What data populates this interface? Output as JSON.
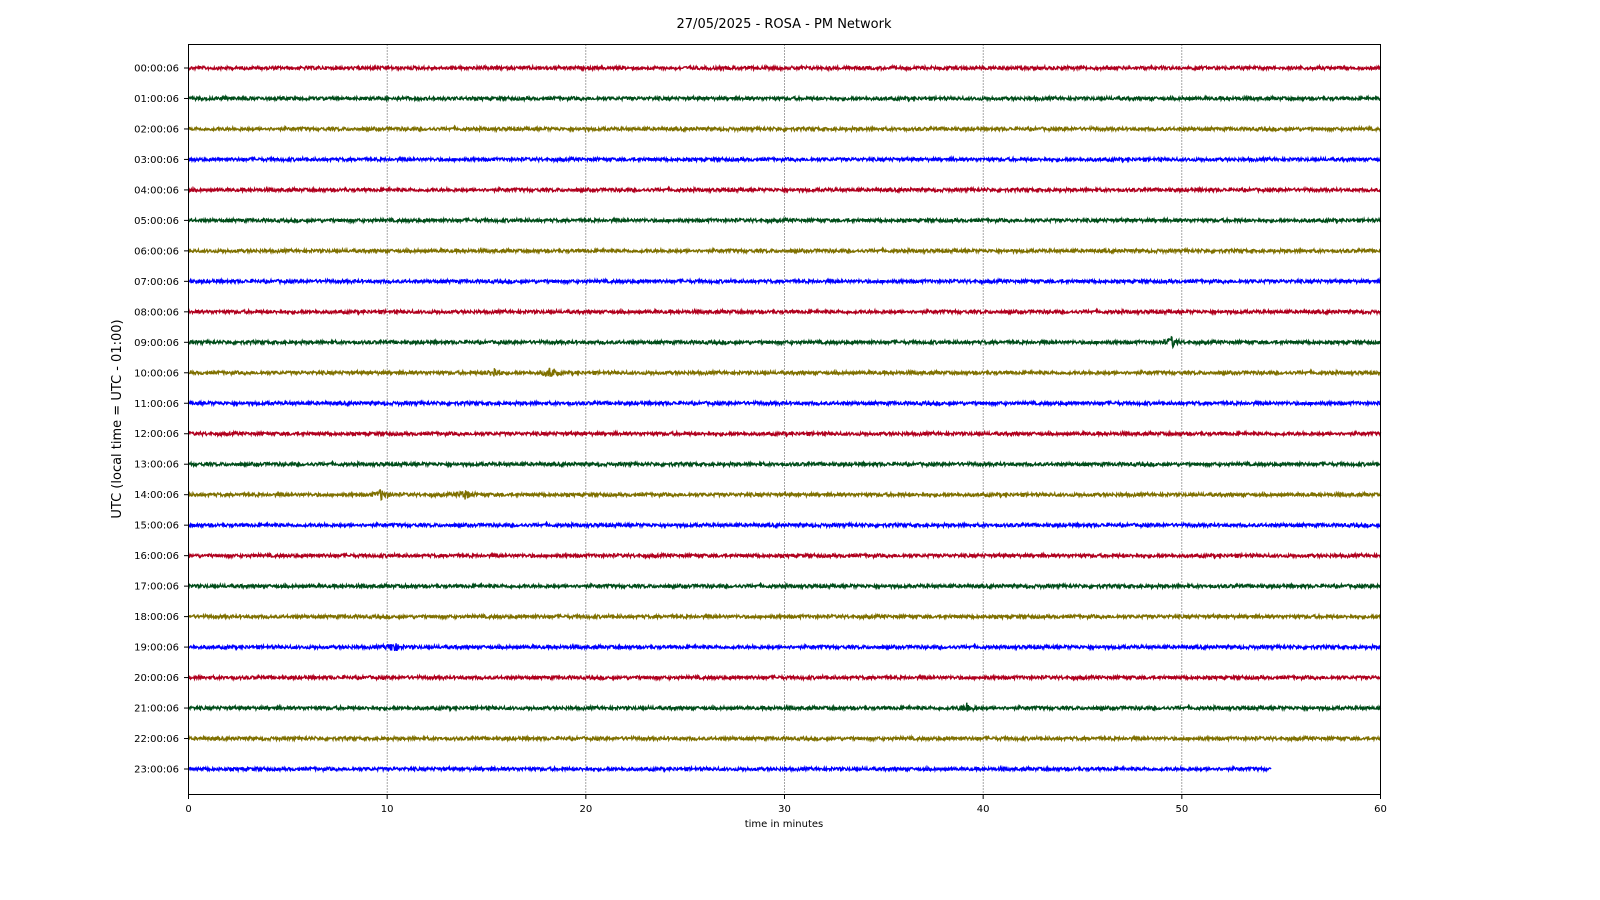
{
  "chart_data": {
    "type": "line",
    "title": "27/05/2025 - ROSA - PM Network",
    "xlabel": "time in minutes",
    "ylabel": "UTC (local time = UTC - 01:00)",
    "xlim": [
      0,
      60
    ],
    "xticks": [
      "0",
      "10",
      "20",
      "30",
      "40",
      "50",
      "60"
    ],
    "grid": "vertical dotted at x ticks",
    "row_labels": [
      "00:00:06",
      "01:00:06",
      "02:00:06",
      "03:00:06",
      "04:00:06",
      "05:00:06",
      "06:00:06",
      "07:00:06",
      "08:00:06",
      "09:00:06",
      "10:00:06",
      "11:00:06",
      "12:00:06",
      "13:00:06",
      "14:00:06",
      "15:00:06",
      "16:00:06",
      "17:00:06",
      "18:00:06",
      "19:00:06",
      "20:00:06",
      "21:00:06",
      "22:00:06",
      "23:00:06"
    ],
    "colors": [
      "#b0001e",
      "#004d1a",
      "#7f7000",
      "#0000ff"
    ],
    "last_row_end_minute": 54.5,
    "events": [
      {
        "row": 9,
        "minute": 49.5
      },
      {
        "row": 10,
        "minute": 15.4
      },
      {
        "row": 10,
        "minute": 18.2
      },
      {
        "row": 14,
        "minute": 9.7
      },
      {
        "row": 14,
        "minute": 13.9
      },
      {
        "row": 19,
        "minute": 10.3
      },
      {
        "row": 21,
        "minute": 39.2
      }
    ]
  }
}
